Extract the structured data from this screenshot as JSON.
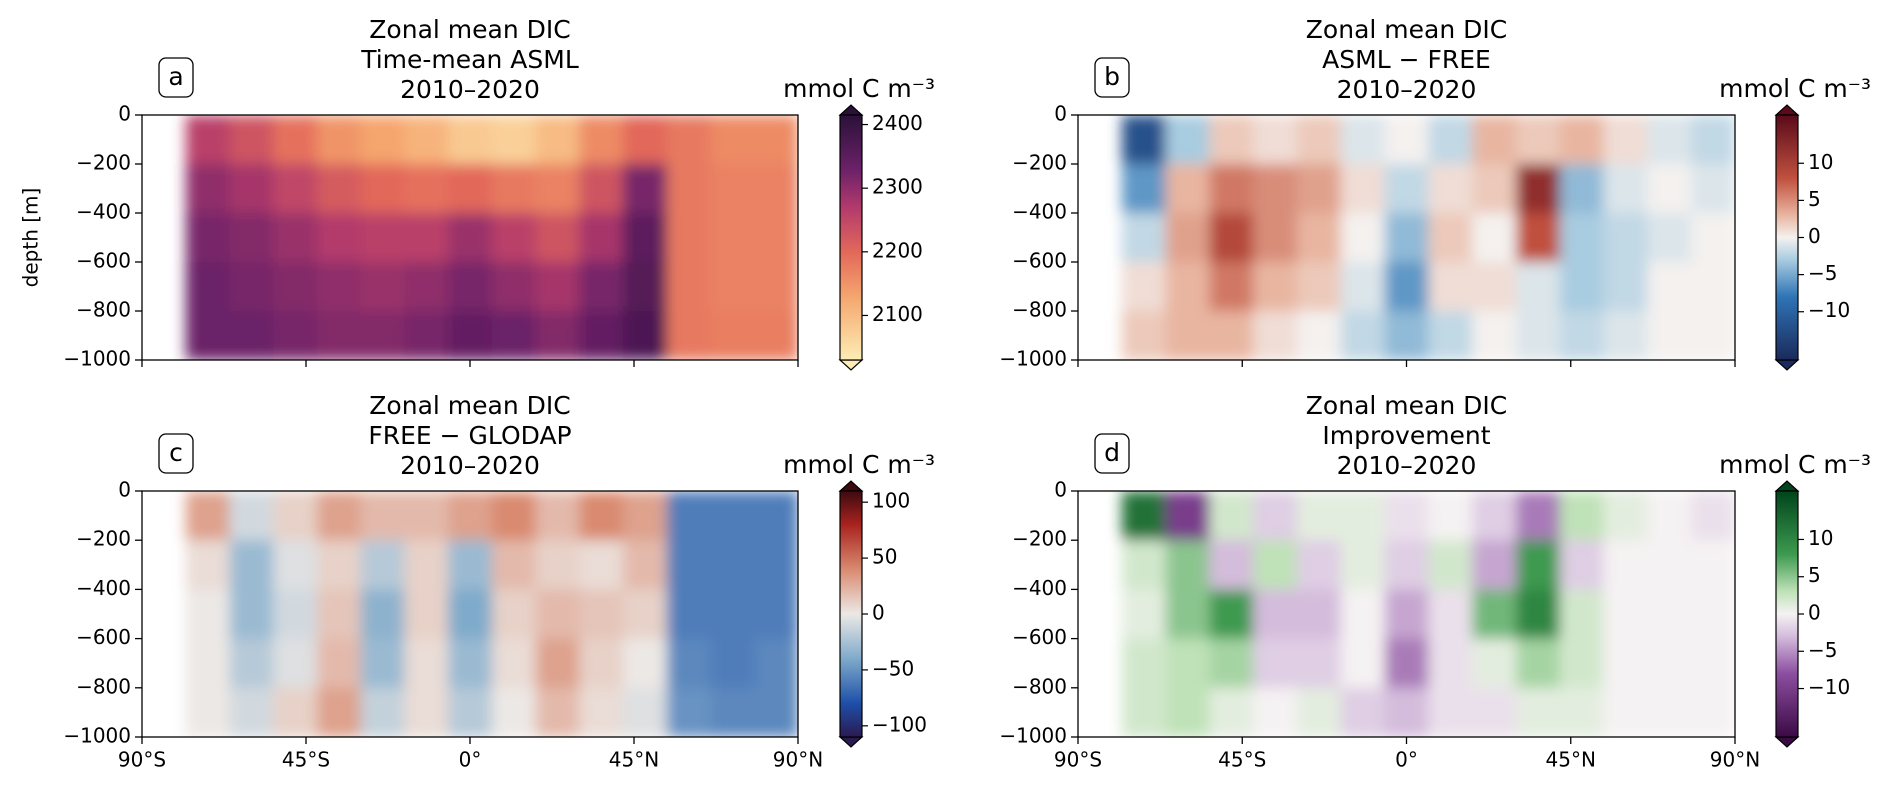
{
  "chart_data": [
    {
      "type": "heatmap",
      "panel": "a",
      "title": [
        "Zonal mean DIC",
        "Time-mean ASML",
        "2010–2020"
      ],
      "colorbar_label": "mmol C m⁻³",
      "ylabel": "depth [m]",
      "x": [
        -72,
        -60,
        -48,
        -36,
        -24,
        -12,
        0,
        12,
        24,
        36,
        48,
        60,
        72,
        84
      ],
      "y": [
        -100,
        -300,
        -500,
        -700,
        -900
      ],
      "values": [
        [
          2260,
          2230,
          2190,
          2150,
          2130,
          2110,
          2080,
          2070,
          2100,
          2160,
          2200,
          2180,
          2160,
          2160
        ],
        [
          2300,
          2280,
          2250,
          2220,
          2200,
          2190,
          2200,
          2180,
          2170,
          2230,
          2320,
          2180,
          2170,
          2170
        ],
        [
          2320,
          2310,
          2290,
          2270,
          2260,
          2260,
          2290,
          2260,
          2230,
          2280,
          2350,
          2180,
          2170,
          2170
        ],
        [
          2330,
          2320,
          2310,
          2300,
          2290,
          2300,
          2320,
          2300,
          2280,
          2320,
          2360,
          2180,
          2170,
          2170
        ],
        [
          2330,
          2330,
          2320,
          2310,
          2310,
          2320,
          2340,
          2330,
          2310,
          2340,
          2370,
          2180,
          2175,
          2175
        ]
      ],
      "xlim": [
        -90,
        90
      ],
      "xticks": [
        -90,
        -45,
        0,
        45,
        90
      ],
      "xtick_labels": false,
      "ylim": [
        -1000,
        0
      ],
      "yticks": [
        0,
        {
          "value": -200,
          "label": "−200"
        },
        {
          "value": -400,
          "label": "−400"
        },
        {
          "value": -600,
          "label": "−600"
        },
        {
          "value": -800,
          "label": "−800"
        },
        {
          "value": -1000,
          "label": "−1000"
        }
      ],
      "clim": [
        2030,
        2415
      ],
      "cbar_ticks": [
        2100,
        2200,
        2300,
        2400
      ],
      "colormap": [
        {
          "value": 2030,
          "color": "#fdedb5"
        },
        {
          "value": 2130,
          "color": "#f5a56e"
        },
        {
          "value": 2200,
          "color": "#e2685a"
        },
        {
          "value": 2270,
          "color": "#b23a6c"
        },
        {
          "value": 2330,
          "color": "#6b2168"
        },
        {
          "value": 2415,
          "color": "#2a1139"
        }
      ]
    },
    {
      "type": "heatmap",
      "panel": "b",
      "title": [
        "Zonal mean DIC",
        "ASML − FREE",
        "2010–2020"
      ],
      "colorbar_label": "mmol C m⁻³",
      "x": [
        -72,
        -60,
        -48,
        -36,
        -24,
        -12,
        0,
        12,
        24,
        36,
        48,
        60,
        72,
        84
      ],
      "y": [
        -100,
        -300,
        -500,
        -700,
        -900
      ],
      "values": [
        [
          -12,
          -3,
          2,
          1,
          2,
          -1,
          0,
          -2,
          3,
          2,
          3,
          1,
          -1,
          -2
        ],
        [
          -6,
          3,
          6,
          5,
          4,
          1,
          -2,
          1,
          2,
          12,
          -4,
          -1,
          0,
          -1
        ],
        [
          -2,
          4,
          9,
          5,
          3,
          0,
          -4,
          2,
          0,
          8,
          -3,
          -2,
          -1,
          0
        ],
        [
          1,
          3,
          6,
          3,
          2,
          -1,
          -6,
          1,
          1,
          -1,
          -3,
          -2,
          0,
          0
        ],
        [
          2,
          3,
          3,
          1,
          0,
          -2,
          -4,
          -2,
          0,
          -1,
          -2,
          -1,
          0,
          0
        ]
      ],
      "xlim": [
        -90,
        90
      ],
      "xticks": [
        -90,
        -45,
        0,
        45,
        90
      ],
      "xtick_labels": false,
      "ylim": [
        -1000,
        0
      ],
      "yticks": [
        0,
        {
          "value": -200,
          "label": "−200"
        },
        {
          "value": -400,
          "label": "−400"
        },
        {
          "value": -600,
          "label": "−600"
        },
        {
          "value": -800,
          "label": "−800"
        },
        {
          "value": -1000,
          "label": "−1000"
        }
      ],
      "clim": [
        -16.5,
        16.5
      ],
      "cbar_ticks": [
        10,
        5,
        0,
        {
          "value": -5,
          "label": "−5"
        },
        {
          "value": -10,
          "label": "−10"
        }
      ],
      "colormap": [
        {
          "value": -16.5,
          "color": "#1a2a5c"
        },
        {
          "value": -8,
          "color": "#2f74b5"
        },
        {
          "value": -3,
          "color": "#a8cce0"
        },
        {
          "value": 0,
          "color": "#f4f1ef"
        },
        {
          "value": 3,
          "color": "#e8b5a0"
        },
        {
          "value": 8,
          "color": "#c0503e"
        },
        {
          "value": 16.5,
          "color": "#5a0a1a"
        }
      ]
    },
    {
      "type": "heatmap",
      "panel": "c",
      "title": [
        "Zonal mean DIC",
        "FREE − GLODAP",
        "2010–2020"
      ],
      "colorbar_label": "mmol C m⁻³",
      "x": [
        -72,
        -60,
        -48,
        -36,
        -24,
        -12,
        0,
        12,
        24,
        36,
        48,
        60,
        72,
        84
      ],
      "y": [
        -100,
        -300,
        -500,
        -700,
        -900
      ],
      "values": [
        [
          30,
          -10,
          10,
          30,
          20,
          20,
          30,
          40,
          20,
          40,
          30,
          -60,
          -60,
          -60
        ],
        [
          5,
          -30,
          -5,
          10,
          -20,
          10,
          -30,
          20,
          10,
          5,
          20,
          -60,
          -60,
          -60
        ],
        [
          0,
          -30,
          -10,
          15,
          -35,
          10,
          -40,
          10,
          20,
          15,
          10,
          -60,
          -60,
          -60
        ],
        [
          0,
          -20,
          -5,
          20,
          -30,
          5,
          -30,
          5,
          30,
          10,
          0,
          -55,
          -60,
          -55
        ],
        [
          0,
          -10,
          10,
          30,
          -15,
          5,
          -20,
          0,
          20,
          5,
          -5,
          -50,
          -55,
          -55
        ]
      ],
      "xlim": [
        -90,
        90
      ],
      "xticks": [
        {
          "value": -90,
          "label": "90°S"
        },
        {
          "value": -45,
          "label": "45°S"
        },
        {
          "value": 0,
          "label": "0°"
        },
        {
          "value": 45,
          "label": "45°N"
        },
        {
          "value": 90,
          "label": "90°N"
        }
      ],
      "ylim": [
        -1000,
        0
      ],
      "yticks": [
        0,
        {
          "value": -200,
          "label": "−200"
        },
        {
          "value": -400,
          "label": "−400"
        },
        {
          "value": -600,
          "label": "−600"
        },
        {
          "value": -800,
          "label": "−800"
        },
        {
          "value": -1000,
          "label": "−1000"
        }
      ],
      "clim": [
        -110,
        110
      ],
      "cbar_ticks": [
        100,
        50,
        0,
        {
          "value": -50,
          "label": "−50"
        },
        {
          "value": -100,
          "label": "−100"
        }
      ],
      "colormap": [
        {
          "value": -110,
          "color": "#2a1a50"
        },
        {
          "value": -80,
          "color": "#1e4fa8"
        },
        {
          "value": -40,
          "color": "#7faacb"
        },
        {
          "value": 0,
          "color": "#ece8e5"
        },
        {
          "value": 40,
          "color": "#d98a70"
        },
        {
          "value": 80,
          "color": "#a8231f"
        },
        {
          "value": 110,
          "color": "#3d0a10"
        }
      ]
    },
    {
      "type": "heatmap",
      "panel": "d",
      "title": [
        "Zonal mean DIC",
        "Improvement",
        "2010–2020"
      ],
      "colorbar_label": "mmol C m⁻³",
      "x": [
        -72,
        -60,
        -48,
        -36,
        -24,
        -12,
        0,
        12,
        24,
        36,
        48,
        60,
        72,
        84
      ],
      "y": [
        -100,
        -300,
        -500,
        -700,
        -900
      ],
      "values": [
        [
          12,
          -10,
          2,
          -2,
          1,
          1,
          -1,
          0,
          -2,
          -6,
          3,
          1,
          0,
          -1
        ],
        [
          2,
          5,
          -3,
          3,
          -2,
          1,
          -2,
          2,
          -4,
          8,
          -2,
          0,
          0,
          0
        ],
        [
          1,
          5,
          8,
          -3,
          -3,
          0,
          -4,
          -1,
          6,
          10,
          2,
          0,
          0,
          0
        ],
        [
          2,
          3,
          4,
          -2,
          -2,
          0,
          -6,
          -1,
          1,
          4,
          2,
          0,
          0,
          0
        ],
        [
          2,
          3,
          1,
          0,
          1,
          -2,
          -3,
          -1,
          -1,
          1,
          1,
          0,
          0,
          0
        ]
      ],
      "xlim": [
        -90,
        90
      ],
      "xticks": [
        {
          "value": -90,
          "label": "90°S"
        },
        {
          "value": -45,
          "label": "45°S"
        },
        {
          "value": 0,
          "label": "0°"
        },
        {
          "value": 45,
          "label": "45°N"
        },
        {
          "value": 90,
          "label": "90°N"
        }
      ],
      "ylim": [
        -1000,
        0
      ],
      "yticks": [
        0,
        {
          "value": -200,
          "label": "−200"
        },
        {
          "value": -400,
          "label": "−400"
        },
        {
          "value": -600,
          "label": "−600"
        },
        {
          "value": -800,
          "label": "−800"
        },
        {
          "value": -1000,
          "label": "−1000"
        }
      ],
      "clim": [
        -16.5,
        16.5
      ],
      "cbar_ticks": [
        10,
        5,
        0,
        {
          "value": -5,
          "label": "−5"
        },
        {
          "value": -10,
          "label": "−10"
        }
      ],
      "colormap": [
        {
          "value": -16.5,
          "color": "#3b0a45"
        },
        {
          "value": -8,
          "color": "#8c4ea0"
        },
        {
          "value": -3,
          "color": "#d4bcdc"
        },
        {
          "value": 0,
          "color": "#f5f2f3"
        },
        {
          "value": 3,
          "color": "#bfe2b8"
        },
        {
          "value": 8,
          "color": "#3d9a4f"
        },
        {
          "value": 16.5,
          "color": "#00441b"
        }
      ]
    }
  ]
}
